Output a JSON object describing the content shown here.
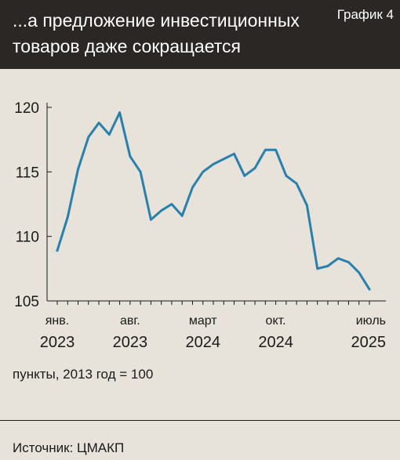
{
  "header": {
    "title_line1": "...а предложение инвестиционных",
    "title_line2": "товаров даже сокращается",
    "tag": "График 4"
  },
  "footer": {
    "units": "пункты, 2013 год = 100",
    "source": "Источник: ЦМАКП"
  },
  "colors": {
    "line": "#2a80ad",
    "header_bg": "#2b2724",
    "background": "#e7e3da"
  },
  "chart_data": {
    "type": "line",
    "title": "...а предложение инвестиционных товаров даже сокращается",
    "xlabel": "",
    "ylabel": "пункты, 2013 год = 100",
    "ylim": [
      105,
      120
    ],
    "yticks": [
      105,
      110,
      115,
      120
    ],
    "grid": false,
    "x": [
      "2023-01",
      "2023-02",
      "2023-03",
      "2023-04",
      "2023-05",
      "2023-06",
      "2023-07",
      "2023-08",
      "2023-09",
      "2023-10",
      "2023-11",
      "2023-12",
      "2024-01",
      "2024-02",
      "2024-03",
      "2024-04",
      "2024-05",
      "2024-06",
      "2024-07",
      "2024-08",
      "2024-09",
      "2024-10",
      "2024-11",
      "2024-12",
      "2025-01",
      "2025-02",
      "2025-03",
      "2025-04",
      "2025-05",
      "2025-06",
      "2025-07"
    ],
    "xtick_labels": [
      {
        "x": "2023-01",
        "month": "янв.",
        "year": "2023"
      },
      {
        "x": "2023-08",
        "month": "авг.",
        "year": "2023"
      },
      {
        "x": "2024-03",
        "month": "март",
        "year": "2024"
      },
      {
        "x": "2024-10",
        "month": "окт.",
        "year": "2024"
      },
      {
        "x": "2025-07",
        "month": "июль",
        "year": "2025"
      }
    ],
    "series": [
      {
        "values": [
          108.9,
          111.5,
          115.2,
          117.7,
          118.8,
          117.9,
          119.6,
          116.2,
          115.0,
          111.3,
          112.0,
          112.5,
          111.6,
          113.8,
          115.0,
          115.6,
          116.0,
          116.4,
          114.7,
          115.3,
          116.7,
          116.7,
          114.7,
          114.1,
          112.4,
          107.5,
          107.7,
          108.3,
          108.0,
          107.2,
          105.9
        ]
      }
    ]
  }
}
